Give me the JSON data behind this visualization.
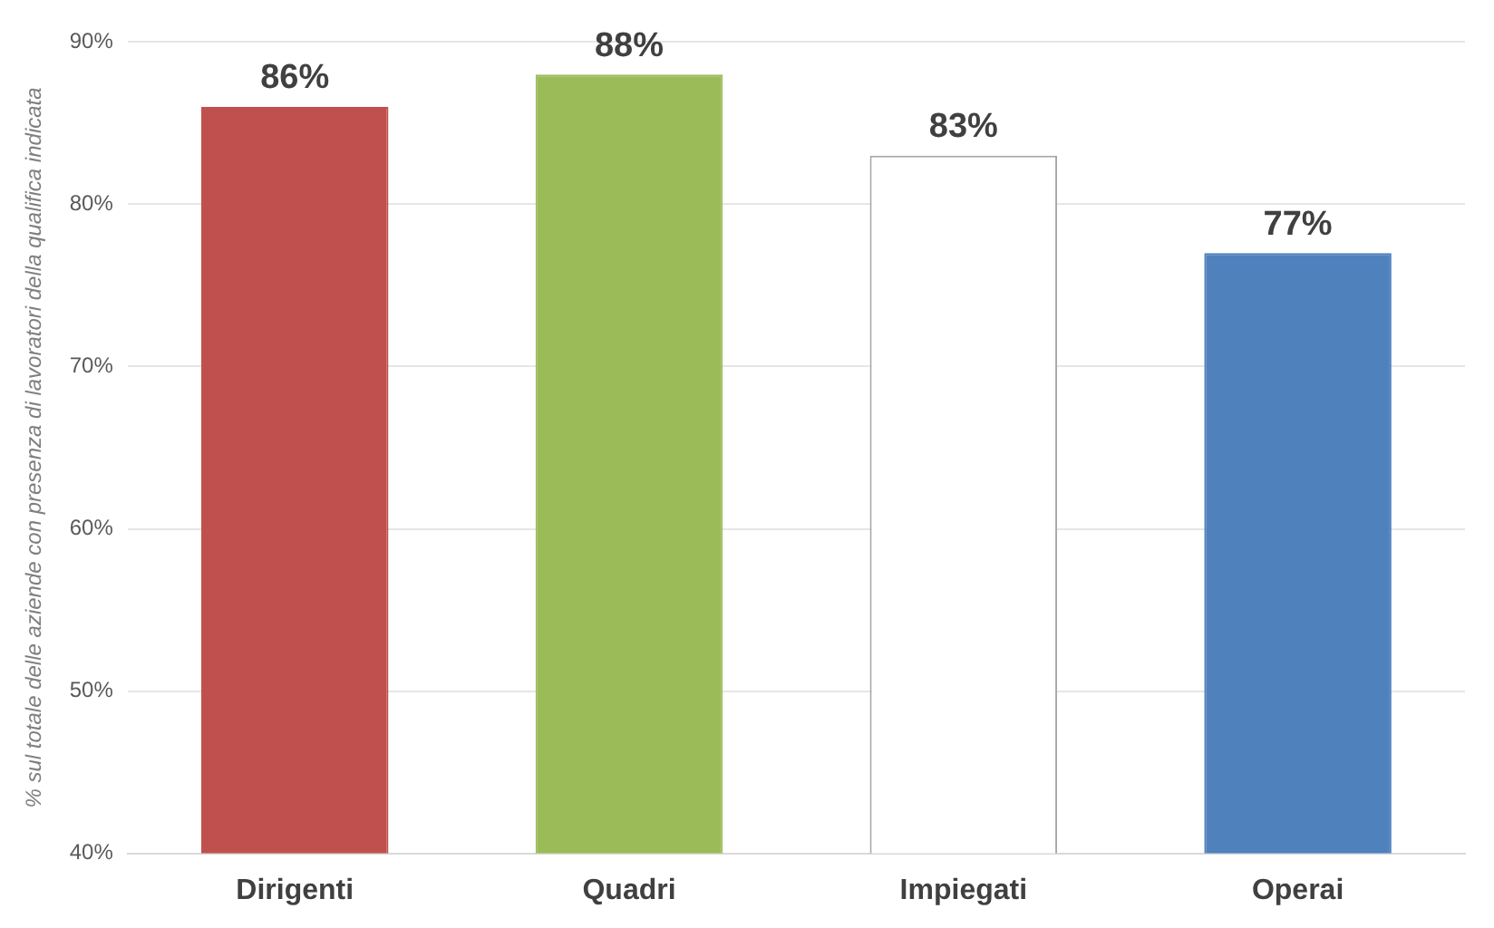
{
  "chart_data": {
    "type": "bar",
    "ylabel": "% sul totale delle aziende con presenza di lavoratori della qualifica indicata",
    "categories": [
      "Dirigenti",
      "Quadri",
      "Impiegati",
      "Operai"
    ],
    "values": [
      86,
      88,
      83,
      77
    ],
    "value_labels": [
      "86%",
      "88%",
      "83%",
      "77%"
    ],
    "colors": [
      "#c0504d",
      "#9bbb59",
      "#ffffff",
      "#4f81bd"
    ],
    "ylim": [
      40,
      90
    ],
    "yticks": [
      {
        "value": 40,
        "label": "40%"
      },
      {
        "value": 50,
        "label": "50%"
      },
      {
        "value": 60,
        "label": "60%"
      },
      {
        "value": 70,
        "label": "70%"
      },
      {
        "value": 80,
        "label": "80%"
      },
      {
        "value": 90,
        "label": "90%"
      }
    ],
    "grid": "y",
    "legend": false
  }
}
